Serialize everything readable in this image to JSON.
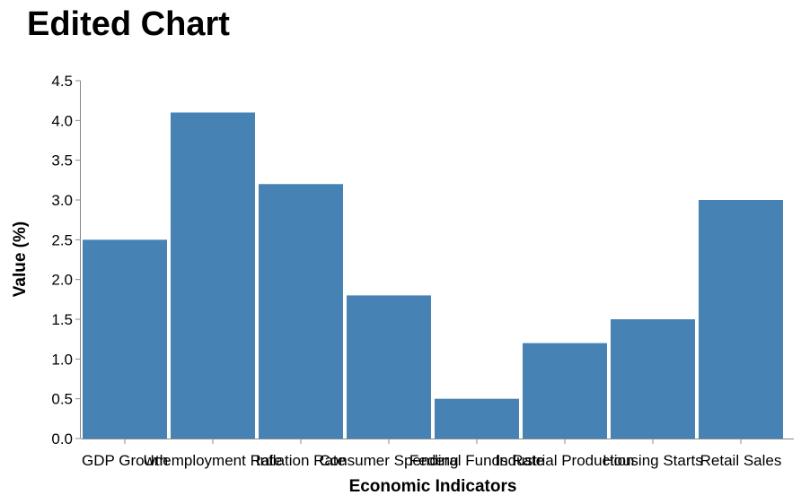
{
  "chart_data": {
    "type": "bar",
    "title": "Edited Chart",
    "xlabel": "Economic Indicators",
    "ylabel": "Value (%)",
    "categories": [
      "GDP Growth",
      "Unemployment Rate",
      "Inflation Rate",
      "Consumer Spending",
      "Federal Funds Rate",
      "Industrial Production",
      "Housing Starts",
      "Retail Sales"
    ],
    "values": [
      2.5,
      4.1,
      3.2,
      1.8,
      0.5,
      1.2,
      1.5,
      3.0
    ],
    "ylim": [
      0,
      4.5
    ],
    "yticks": [
      0.0,
      0.5,
      1.0,
      1.5,
      2.0,
      2.5,
      3.0,
      3.5,
      4.0,
      4.5
    ],
    "bar_color": "#4682b4",
    "grid": false,
    "legend": "none"
  }
}
